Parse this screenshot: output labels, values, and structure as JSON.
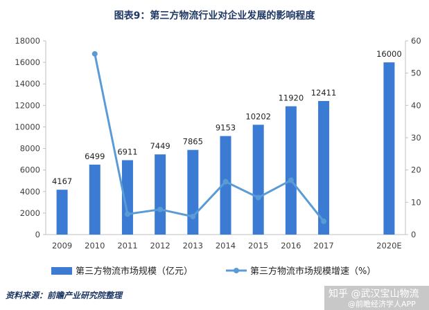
{
  "title": "图表9：第三方物流行业对企业发展的影响程度",
  "source": "资料来源：前瞻产业研究院整理",
  "watermark": "知乎 @武汉宝山物流",
  "watermark_sub": "@前瞻经济学人APP",
  "colors": {
    "bar": "#3b7bd4",
    "line": "#5b9bd5",
    "title": "#1f3864",
    "axis": "#bfbfbf"
  },
  "chart_data": {
    "type": "bar",
    "categories": [
      "2009",
      "2010",
      "2011",
      "2012",
      "2013",
      "2014",
      "2015",
      "2016",
      "2017",
      "2020E"
    ],
    "series": [
      {
        "name": "第三方物流市场规模（亿元）",
        "kind": "bar",
        "axis": "left",
        "values": [
          4167,
          6499,
          6911,
          7449,
          7865,
          9153,
          10202,
          11920,
          12411,
          16000
        ]
      },
      {
        "name": "第三方物流市场规模增速（%）",
        "kind": "line",
        "axis": "right",
        "values": [
          null,
          55.96,
          6.34,
          7.78,
          5.58,
          16.38,
          11.46,
          16.84,
          4.12,
          null
        ]
      }
    ],
    "ylim_left": [
      0,
      18000
    ],
    "yticks_left": [
      0,
      2000,
      4000,
      6000,
      8000,
      10000,
      12000,
      14000,
      16000,
      18000
    ],
    "ylim_right": [
      0,
      60
    ],
    "yticks_right": [
      0,
      10,
      20,
      30,
      40,
      50,
      60
    ],
    "grid": false,
    "legend_position": "bottom"
  }
}
